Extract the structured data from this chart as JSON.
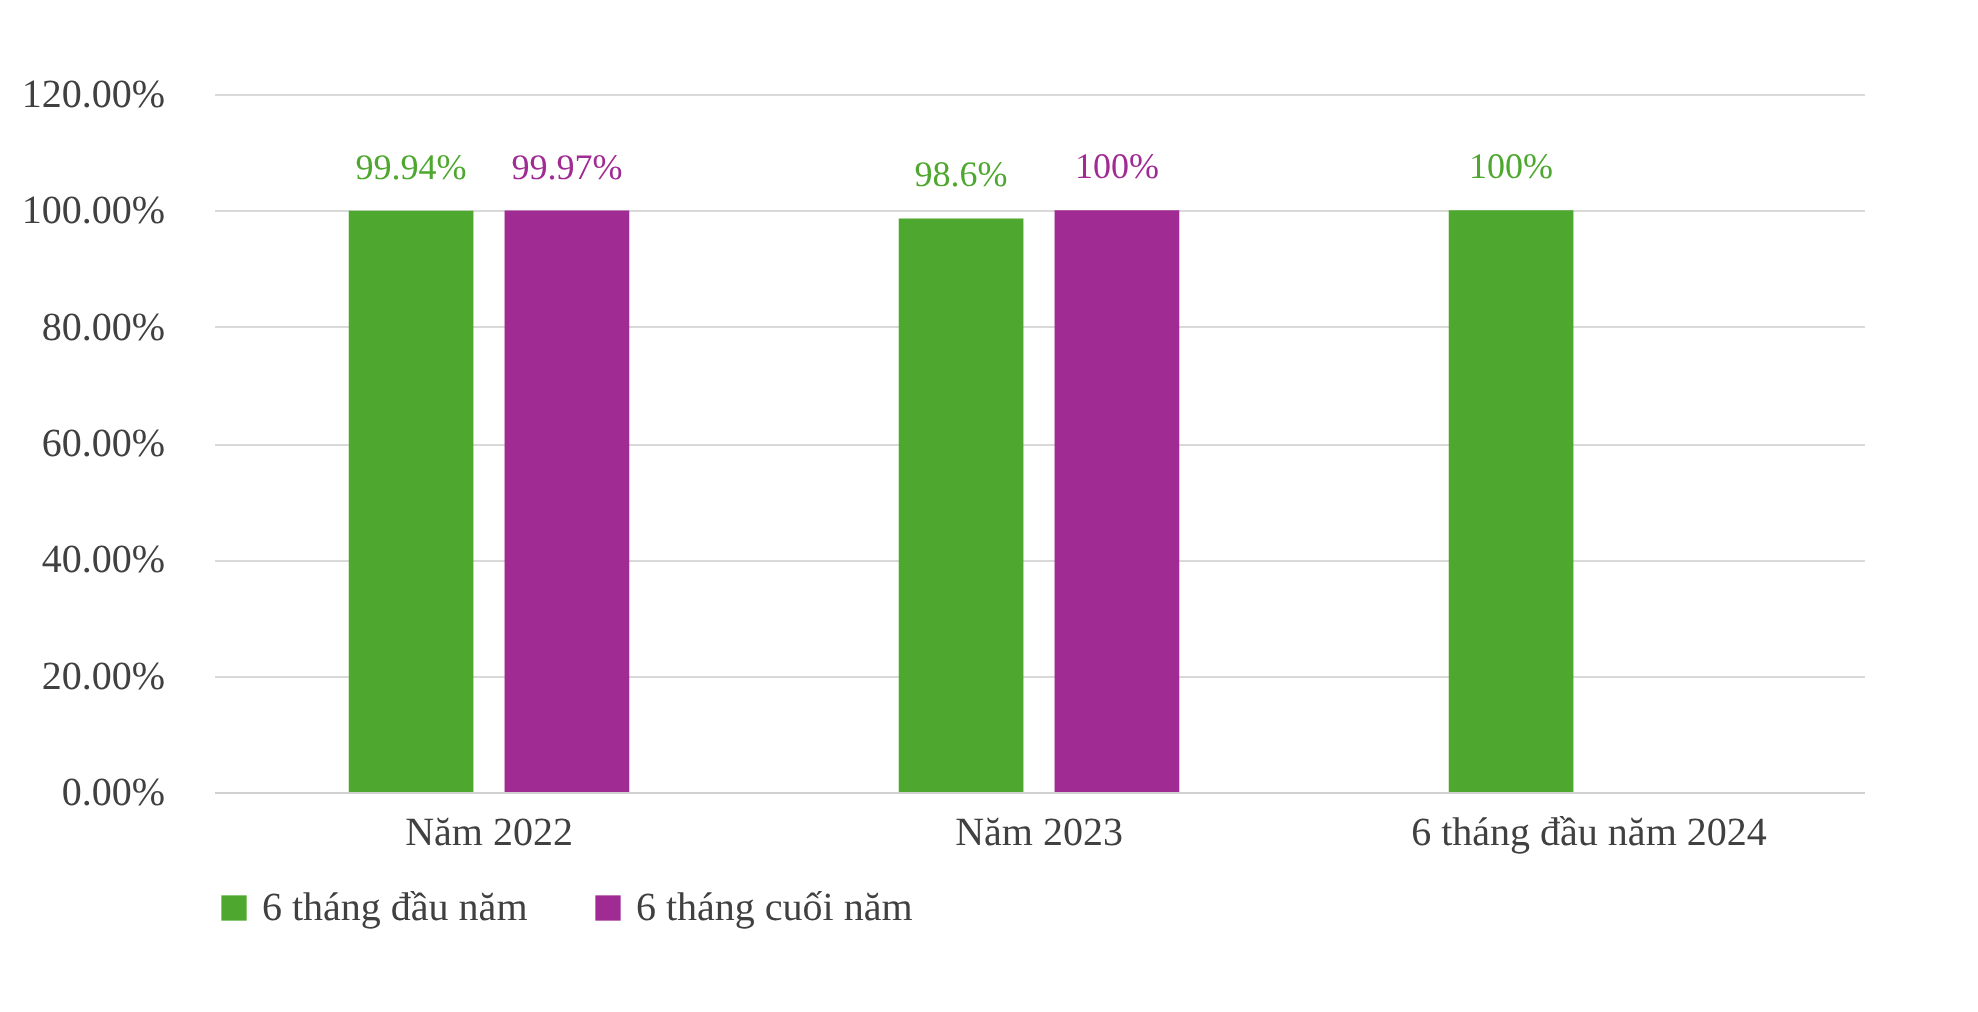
{
  "chart_data": {
    "type": "bar",
    "categories": [
      "Năm 2022",
      "Năm 2023",
      "6 tháng đầu năm 2024"
    ],
    "series": [
      {
        "name": "6 tháng đầu năm",
        "color": "#4ea72e",
        "values": [
          99.94,
          98.6,
          100
        ],
        "value_labels": [
          "99.94%",
          "98.6%",
          "100%"
        ]
      },
      {
        "name": "6 tháng cuối năm",
        "color": "#a02b93",
        "values": [
          99.97,
          100,
          null
        ],
        "value_labels": [
          "99.97%",
          "100%",
          null
        ]
      }
    ],
    "ylim": [
      0,
      120
    ],
    "yticks": [
      {
        "value": 0,
        "label": "0.00%"
      },
      {
        "value": 20,
        "label": "20.00%"
      },
      {
        "value": 40,
        "label": "40.00%"
      },
      {
        "value": 60,
        "label": "60.00%"
      },
      {
        "value": 80,
        "label": "80.00%"
      },
      {
        "value": 100,
        "label": "100.00%"
      },
      {
        "value": 120,
        "label": "120.00%"
      }
    ],
    "grid": "y",
    "legend": "bottom"
  }
}
